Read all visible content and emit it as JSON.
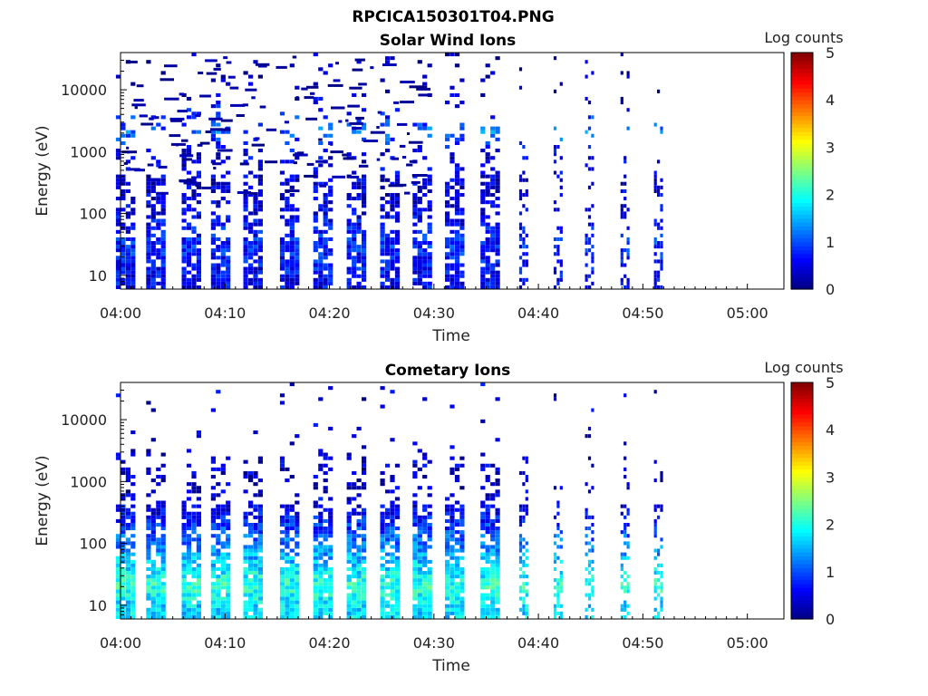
{
  "figure": {
    "title": "RPCICA150301T04.PNG"
  },
  "chart_data": [
    {
      "type": "heatmap",
      "title": "Solar Wind Ions",
      "xlabel": "Time",
      "ylabel": "Energy (eV)",
      "x_ticks": [
        "04:00",
        "04:10",
        "04:20",
        "04:30",
        "04:40",
        "04:50",
        "05:00"
      ],
      "x_range_minutes": [
        0,
        63.5
      ],
      "y_ticks": [
        "10",
        "100",
        "1000",
        "10000"
      ],
      "y_scale": "log",
      "y_range": [
        6,
        40000
      ],
      "colorbar": {
        "label": "Log counts",
        "ticks": [
          "0",
          "1",
          "2",
          "3",
          "4",
          "5"
        ],
        "range": [
          0,
          5
        ],
        "colormap": "jet"
      },
      "sweep_times_minutes": [
        0.5,
        3.4,
        6.8,
        9.6,
        12.7,
        16.2,
        19.4,
        22.6,
        25.8,
        28.9,
        32.0,
        35.4,
        38.6,
        41.9,
        44.9,
        48.3,
        51.5
      ],
      "approx_level_by_energy": [
        {
          "energy_eV": 10,
          "level": 0.6
        },
        {
          "energy_eV": 30,
          "level": 0.8
        },
        {
          "energy_eV": 100,
          "level": 0.5
        },
        {
          "energy_eV": 300,
          "level": 0.4
        },
        {
          "energy_eV": 1000,
          "level": 0.5
        },
        {
          "energy_eV": 2000,
          "level": 1.2
        },
        {
          "energy_eV": 10000,
          "level": 0.2
        }
      ],
      "max_level": 2.3
    },
    {
      "type": "heatmap",
      "title": "Cometary Ions",
      "xlabel": "Time",
      "ylabel": "Energy (eV)",
      "x_ticks": [
        "04:00",
        "04:10",
        "04:20",
        "04:30",
        "04:40",
        "04:50",
        "05:00"
      ],
      "x_range_minutes": [
        0,
        63.5
      ],
      "y_ticks": [
        "10",
        "100",
        "1000",
        "10000"
      ],
      "y_scale": "log",
      "y_range": [
        6,
        40000
      ],
      "colorbar": {
        "label": "Log counts",
        "ticks": [
          "0",
          "1",
          "2",
          "3",
          "4",
          "5"
        ],
        "range": [
          0,
          5
        ],
        "colormap": "jet"
      },
      "sweep_times_minutes": [
        0.5,
        3.4,
        6.8,
        9.6,
        12.7,
        16.2,
        19.4,
        22.6,
        25.8,
        28.9,
        32.0,
        35.4,
        38.6,
        41.9,
        44.9,
        48.3,
        51.5
      ],
      "approx_level_by_energy": [
        {
          "energy_eV": 10,
          "level": 1.7
        },
        {
          "energy_eV": 20,
          "level": 2.1
        },
        {
          "energy_eV": 50,
          "level": 1.6
        },
        {
          "energy_eV": 100,
          "level": 1.2
        },
        {
          "energy_eV": 300,
          "level": 0.6
        },
        {
          "energy_eV": 1000,
          "level": 0.3
        },
        {
          "energy_eV": 2000,
          "level": 0.4
        }
      ],
      "max_level": 2.7
    }
  ]
}
